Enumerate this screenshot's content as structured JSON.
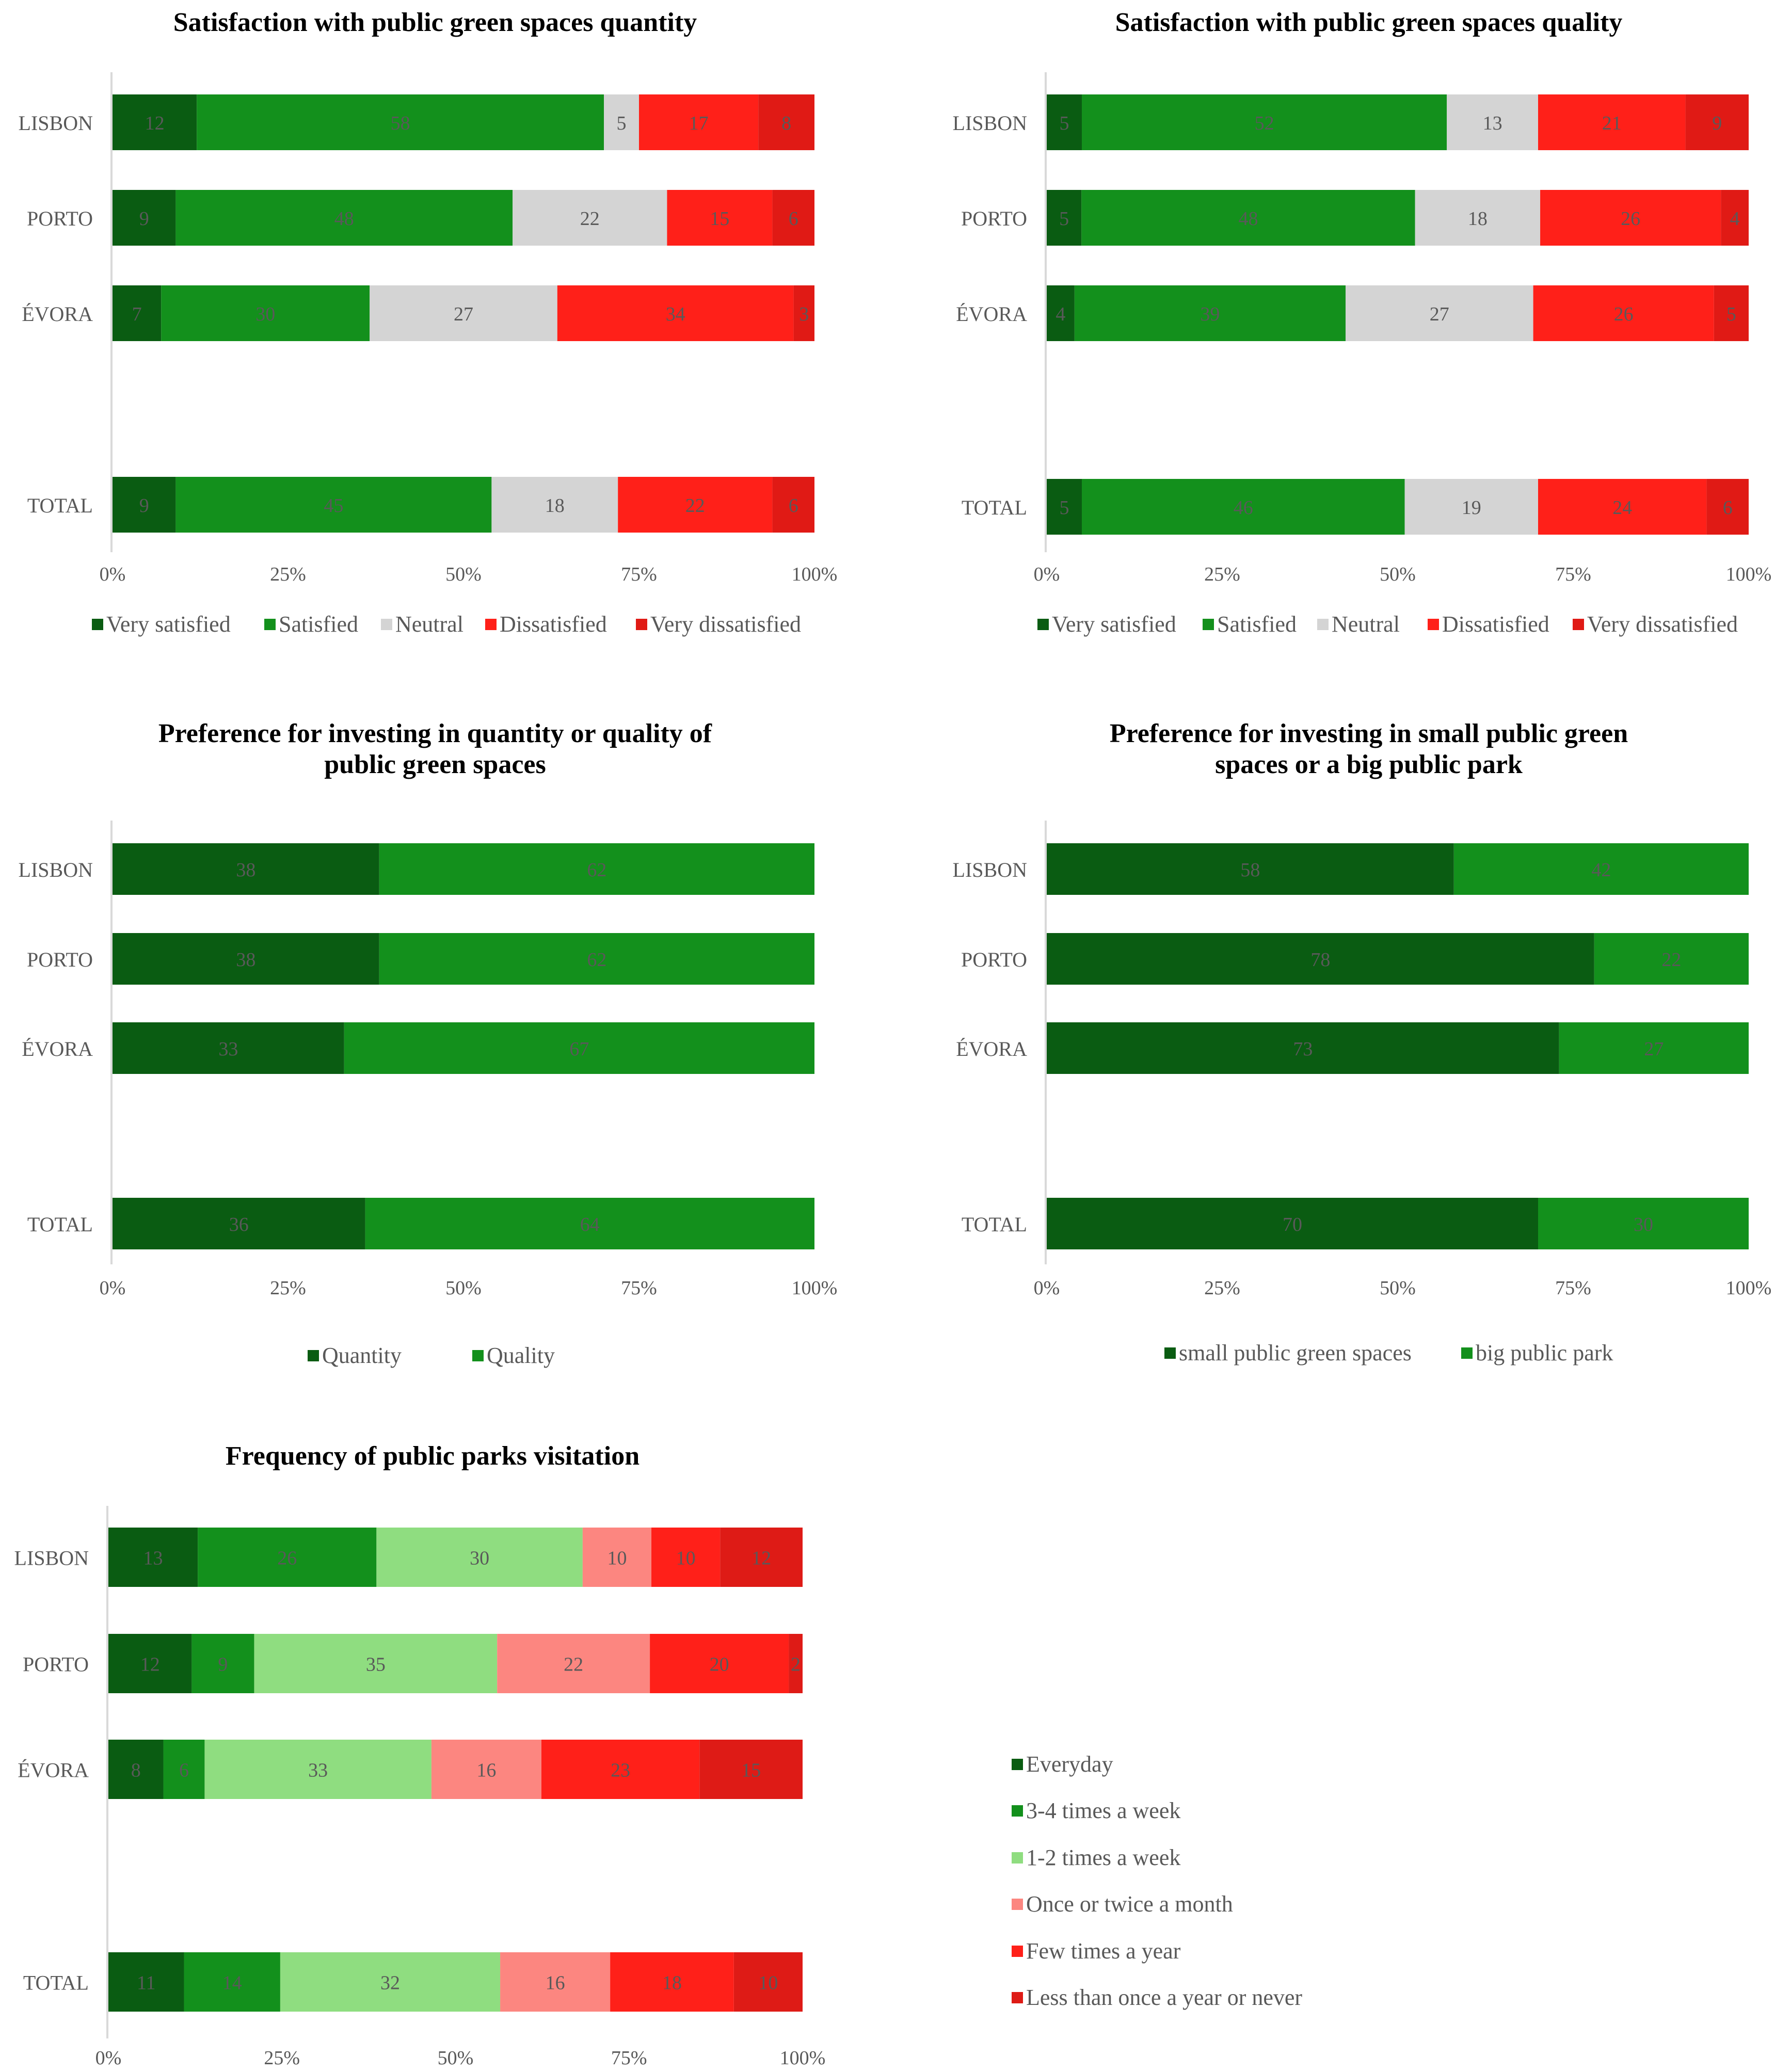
{
  "chart_data": [
    {
      "type": "bar",
      "orientation": "horizontal",
      "stacked": "percent",
      "title_lines": [
        "Satisfaction with public green spaces quantity"
      ],
      "categories": [
        "LISBON",
        "PORTO",
        "ÉVORA",
        "TOTAL"
      ],
      "series": [
        {
          "name": "Very satisfied",
          "color": "#0a5c12",
          "values": [
            12,
            9,
            7,
            9
          ]
        },
        {
          "name": "Satisfied",
          "color": "#13901c",
          "values": [
            58,
            48,
            30,
            45
          ]
        },
        {
          "name": "Neutral",
          "color": "#d4d4d4",
          "values": [
            5,
            22,
            27,
            18
          ]
        },
        {
          "name": "Dissatisfied",
          "color": "#ff2019",
          "values": [
            17,
            15,
            34,
            22
          ]
        },
        {
          "name": "Very dissatisfied",
          "color": "#e01a15",
          "values": [
            8,
            6,
            3,
            6
          ]
        }
      ],
      "xticks": [
        "0%",
        "25%",
        "50%",
        "75%",
        "100%"
      ],
      "xlim": [
        0,
        100
      ],
      "legend_position": "bottom"
    },
    {
      "type": "bar",
      "orientation": "horizontal",
      "stacked": "percent",
      "title_lines": [
        "Satisfaction with public green spaces quality"
      ],
      "categories": [
        "LISBON",
        "PORTO",
        "ÉVORA",
        "TOTAL"
      ],
      "series": [
        {
          "name": "Very satisfied",
          "color": "#0a5c12",
          "values": [
            5,
            5,
            4,
            5
          ]
        },
        {
          "name": "Satisfied",
          "color": "#13901c",
          "values": [
            52,
            48,
            39,
            46
          ]
        },
        {
          "name": "Neutral",
          "color": "#d4d4d4",
          "values": [
            13,
            18,
            27,
            19
          ]
        },
        {
          "name": "Dissatisfied",
          "color": "#ff2019",
          "values": [
            21,
            26,
            26,
            24
          ]
        },
        {
          "name": "Very dissatisfied",
          "color": "#e01a15",
          "values": [
            9,
            4,
            5,
            6
          ]
        }
      ],
      "xticks": [
        "0%",
        "25%",
        "50%",
        "75%",
        "100%"
      ],
      "xlim": [
        0,
        100
      ],
      "legend_position": "bottom"
    },
    {
      "type": "bar",
      "orientation": "horizontal",
      "stacked": "percent",
      "title_lines": [
        "Preference for investing in quantity or quality of",
        "public green spaces"
      ],
      "categories": [
        "LISBON",
        "PORTO",
        "ÉVORA",
        "TOTAL"
      ],
      "series": [
        {
          "name": "Quantity",
          "color": "#0a5c12",
          "values": [
            38,
            38,
            33,
            36
          ]
        },
        {
          "name": "Quality",
          "color": "#13901c",
          "values": [
            62,
            62,
            67,
            64
          ]
        }
      ],
      "xticks": [
        "0%",
        "25%",
        "50%",
        "75%",
        "100%"
      ],
      "xlim": [
        0,
        100
      ],
      "legend_position": "bottom"
    },
    {
      "type": "bar",
      "orientation": "horizontal",
      "stacked": "percent",
      "title_lines": [
        "Preference for investing in small public green",
        "spaces or a big public park"
      ],
      "categories": [
        "LISBON",
        "PORTO",
        "ÉVORA",
        "TOTAL"
      ],
      "series": [
        {
          "name": "small public green spaces",
          "color": "#0a5c12",
          "values": [
            58,
            78,
            73,
            70
          ]
        },
        {
          "name": "big public park",
          "color": "#13901c",
          "values": [
            42,
            22,
            27,
            30
          ]
        }
      ],
      "xticks": [
        "0%",
        "25%",
        "50%",
        "75%",
        "100%"
      ],
      "xlim": [
        0,
        100
      ],
      "legend_position": "bottom"
    },
    {
      "type": "bar",
      "orientation": "horizontal",
      "stacked": "percent",
      "title_lines": [
        "Frequency of public parks visitation"
      ],
      "categories": [
        "LISBON",
        "PORTO",
        "ÉVORA",
        "TOTAL"
      ],
      "series": [
        {
          "name": "Everyday",
          "color": "#0a5c12",
          "values": [
            13,
            12,
            8,
            11
          ]
        },
        {
          "name": "3-4 times a week",
          "color": "#13901c",
          "values": [
            26,
            9,
            6,
            14
          ]
        },
        {
          "name": "1-2 times a week",
          "color": "#8fdd80",
          "values": [
            30,
            35,
            33,
            32
          ]
        },
        {
          "name": "Once or twice a month",
          "color": "#fc8680",
          "values": [
            10,
            22,
            16,
            16
          ]
        },
        {
          "name": "Few times a year",
          "color": "#ff2019",
          "values": [
            10,
            20,
            23,
            18
          ]
        },
        {
          "name": "Less than once a year or never",
          "color": "#de1b16",
          "values": [
            12,
            2,
            15,
            10
          ]
        }
      ],
      "xticks": [
        "0%",
        "25%",
        "50%",
        "75%",
        "100%"
      ],
      "xlim": [
        0,
        100
      ],
      "legend_position": "right"
    }
  ]
}
